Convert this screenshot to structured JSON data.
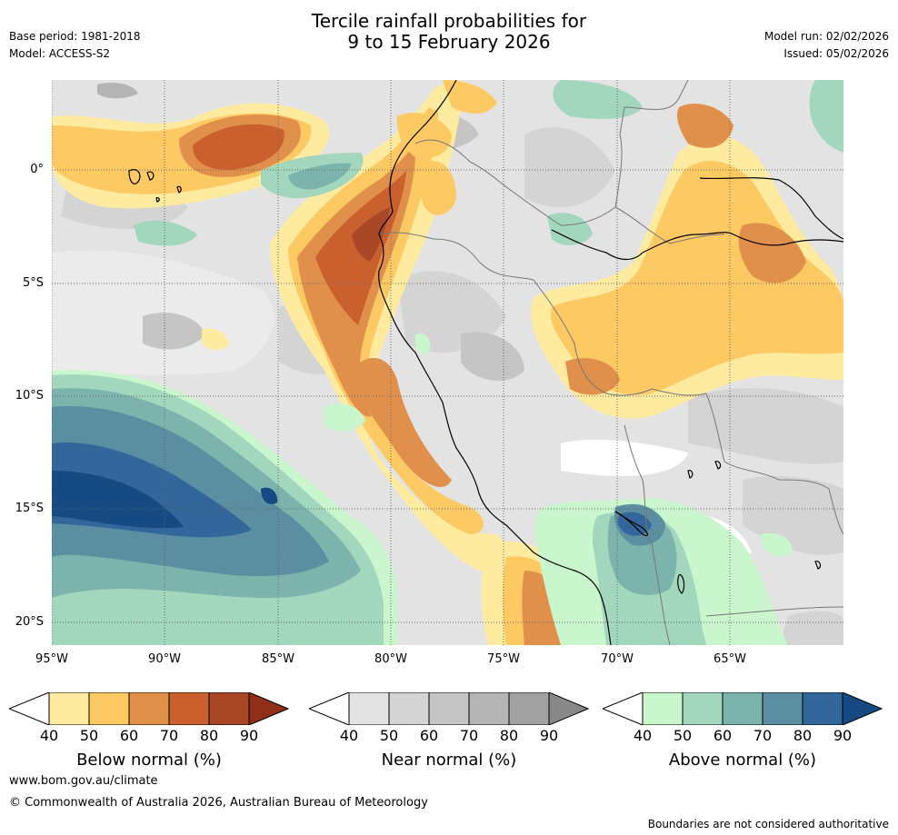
{
  "header": {
    "title_line1": "Tercile rainfall probabilities for",
    "title_line2": "9 to 15 February 2026",
    "base_period": "Base period: 1981-2018",
    "model": "Model: ACCESS-S2",
    "model_run": "Model run: 02/02/2026",
    "issued": "Issued: 05/02/2026"
  },
  "map": {
    "lat_labels": [
      "0°",
      "5°S",
      "10°S",
      "15°S",
      "20°S"
    ],
    "lon_labels": [
      "95°W",
      "90°W",
      "85°W",
      "80°W",
      "75°W",
      "70°W",
      "65°W"
    ]
  },
  "legends": [
    {
      "name": "below",
      "title": "Below normal (%)",
      "ticks": [
        "40",
        "50",
        "60",
        "70",
        "80",
        "90"
      ],
      "colors": [
        "#ffeb9f",
        "#fdc963",
        "#e0904a",
        "#c9602d",
        "#a94826",
        "#8f2f18"
      ]
    },
    {
      "name": "near",
      "title": "Near normal (%)",
      "ticks": [
        "40",
        "50",
        "60",
        "70",
        "80",
        "90"
      ],
      "colors": [
        "#e3e3e3",
        "#d4d4d4",
        "#c5c5c5",
        "#b4b4b4",
        "#a2a2a2",
        "#888888"
      ]
    },
    {
      "name": "above",
      "title": "Above normal (%)",
      "ticks": [
        "40",
        "50",
        "60",
        "70",
        "80",
        "90"
      ],
      "colors": [
        "#c9f6cc",
        "#a3d7bd",
        "#7cb3ac",
        "#5a8ea0",
        "#33669a",
        "#164a83"
      ]
    }
  ],
  "footer": {
    "website": "www.bom.gov.au/climate",
    "copyright": "© Commonwealth of Australia 2026, Australian Bureau of Meteorology",
    "disclaimer": "Boundaries are not considered authoritative"
  }
}
